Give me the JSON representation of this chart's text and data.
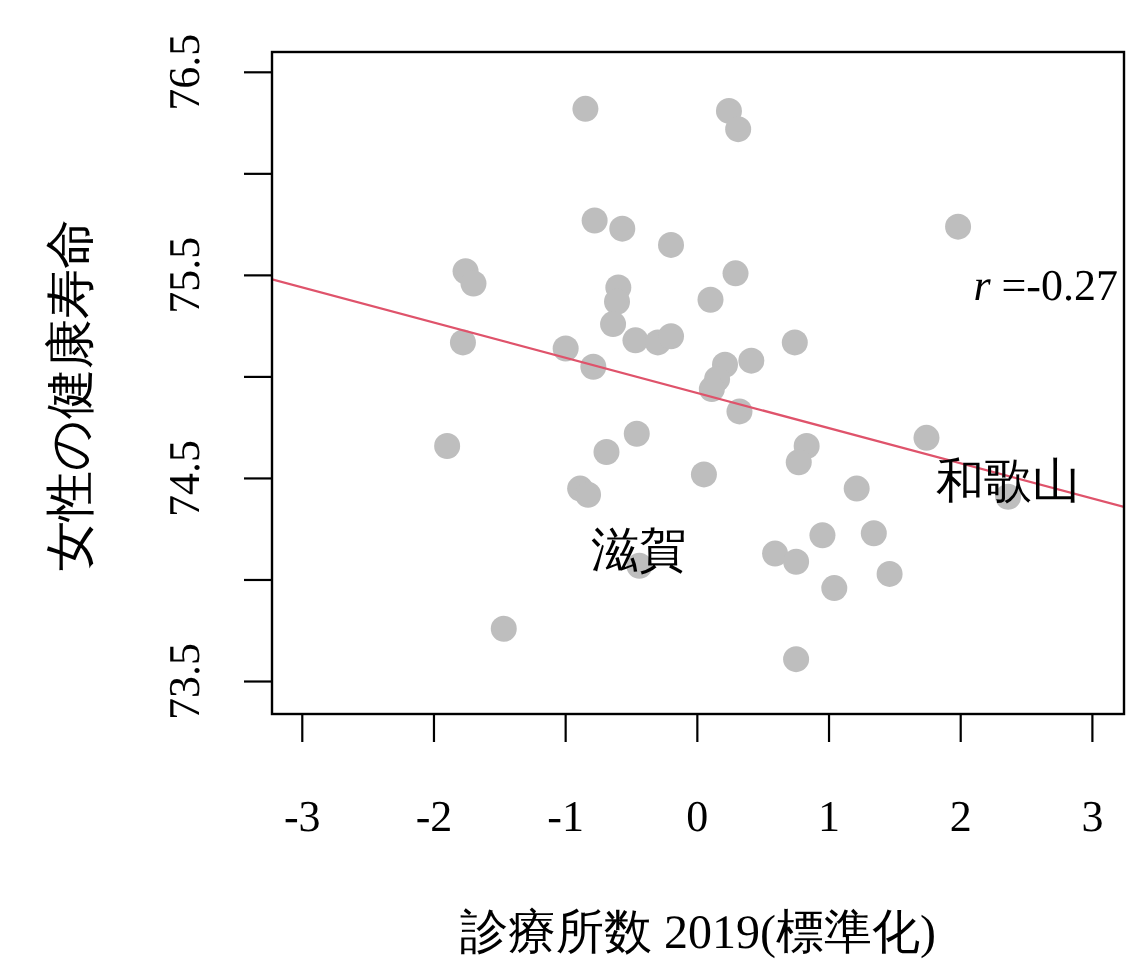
{
  "chart_data": {
    "type": "scatter",
    "xlabel": "診療所数 2019(標準化)",
    "ylabel": "女性の健康寿命",
    "series": [
      {
        "color": "#bebebe",
        "marker": "circle",
        "x": [
          -0.85,
          0.24,
          0.31,
          -0.78,
          -0.57,
          1.98,
          -0.2,
          -1.76,
          -1.7,
          0.29,
          -0.6,
          -0.61,
          0.1,
          -0.64,
          -0.47,
          -0.3,
          -0.2,
          -1.78,
          0.74,
          -1.0,
          -0.79,
          0.41,
          0.21,
          0.15,
          0.11,
          0.32,
          1.74,
          0.83,
          0.77,
          -0.46,
          -0.69,
          -1.9,
          0.05,
          1.21,
          2.36,
          -0.89,
          -0.83,
          0.95,
          1.34,
          0.59,
          0.75,
          -0.44,
          1.46,
          1.04,
          -1.47,
          0.75
        ],
        "values": [
          76.32,
          76.31,
          76.22,
          75.77,
          75.73,
          75.74,
          75.65,
          75.52,
          75.46,
          75.51,
          75.44,
          75.37,
          75.38,
          75.26,
          75.18,
          75.17,
          75.2,
          75.17,
          75.17,
          75.14,
          75.05,
          75.08,
          75.06,
          74.99,
          74.94,
          74.83,
          74.7,
          74.66,
          74.58,
          74.72,
          74.63,
          74.66,
          74.52,
          74.45,
          74.41,
          74.45,
          74.42,
          74.22,
          74.23,
          74.13,
          74.09,
          74.07,
          74.03,
          73.96,
          73.76,
          73.61
        ]
      },
      {
        "type": "line",
        "color": "#df536b",
        "x": [
          -3.23,
          3.24
        ],
        "values": [
          75.48,
          74.36
        ]
      }
    ],
    "xlim": [
      -3.23,
      3.24
    ],
    "ylim": [
      73.34,
      76.6
    ],
    "xticks": [
      -3,
      -2,
      -1,
      0,
      1,
      2,
      3
    ],
    "yticks": [
      73.5,
      {
        "value": 74,
        "label": null
      },
      74.5,
      {
        "value": 75,
        "label": null
      },
      75.5,
      {
        "value": 76,
        "label": null
      },
      76.5
    ],
    "annotations": [
      "r =-0.27",
      {
        "text": "滋賀",
        "x": -0.44,
        "y": 74.07
      },
      {
        "text": "和歌山",
        "x": 2.36,
        "y": 74.41
      }
    ]
  }
}
